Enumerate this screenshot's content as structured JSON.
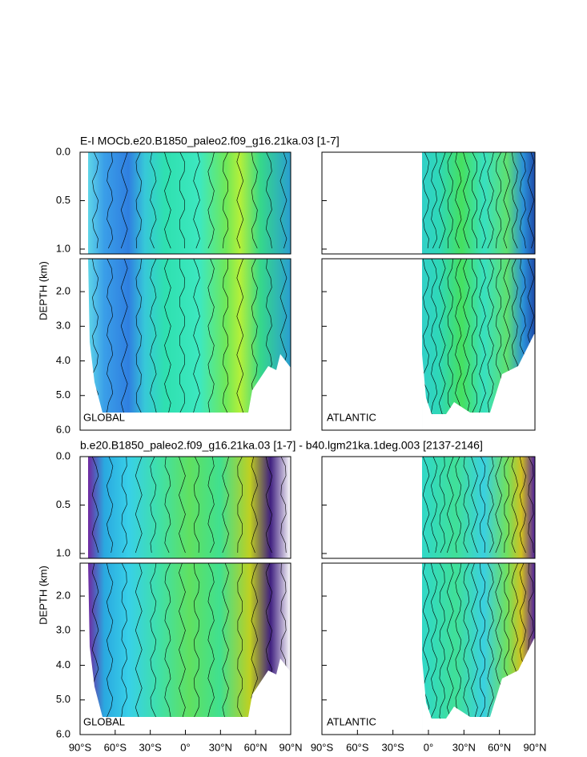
{
  "chart_data": [
    {
      "type": "contour",
      "title": "E-I MOCb.e20.B1850_paleo2.f09_g16.21ka.03 [1-7]",
      "ylabel": "DEPTH (km)",
      "panels": [
        "GLOBAL",
        "ATLANTIC"
      ],
      "ylim_upper": [
        0,
        1.05
      ],
      "ylim_lower": [
        1.05,
        6
      ],
      "yticks": [
        {
          "value": 0,
          "label": "0.0"
        },
        {
          "value": 0.5,
          "label": "0.5"
        },
        {
          "value": 1,
          "label": "1.0"
        },
        {
          "value": 2,
          "label": "2.0"
        },
        {
          "value": 3,
          "label": "3.0"
        },
        {
          "value": 4,
          "label": "4.0"
        },
        {
          "value": 5,
          "label": "5.0"
        },
        {
          "value": 6,
          "label": "6.0"
        }
      ],
      "xlim": [
        -90,
        90
      ]
    },
    {
      "type": "contour",
      "title": "b.e20.B1850_paleo2.f09_g16.21ka.03 [1-7] - b40.lgm21ka.1deg.003 [2137-2146]",
      "ylabel": "DEPTH (km)",
      "panels": [
        "GLOBAL",
        "ATLANTIC"
      ],
      "ylim_upper": [
        0,
        1.05
      ],
      "ylim_lower": [
        1.05,
        6
      ],
      "yticks": [
        {
          "value": 0,
          "label": "0.0"
        },
        {
          "value": 0.5,
          "label": "0.5"
        },
        {
          "value": 1,
          "label": "1.0"
        },
        {
          "value": 2,
          "label": "2.0"
        },
        {
          "value": 3,
          "label": "3.0"
        },
        {
          "value": 4,
          "label": "4.0"
        },
        {
          "value": 5,
          "label": "5.0"
        },
        {
          "value": 6,
          "label": "6.0"
        }
      ],
      "xlim": [
        -90,
        90
      ],
      "xticks": [
        {
          "value": -90,
          "label": "90°S"
        },
        {
          "value": -60,
          "label": "60°S"
        },
        {
          "value": -30,
          "label": "30°S"
        },
        {
          "value": 0,
          "label": "0°"
        },
        {
          "value": 30,
          "label": "30°N"
        },
        {
          "value": 60,
          "label": "60°N"
        },
        {
          "value": 90,
          "label": "90°N"
        }
      ]
    }
  ]
}
